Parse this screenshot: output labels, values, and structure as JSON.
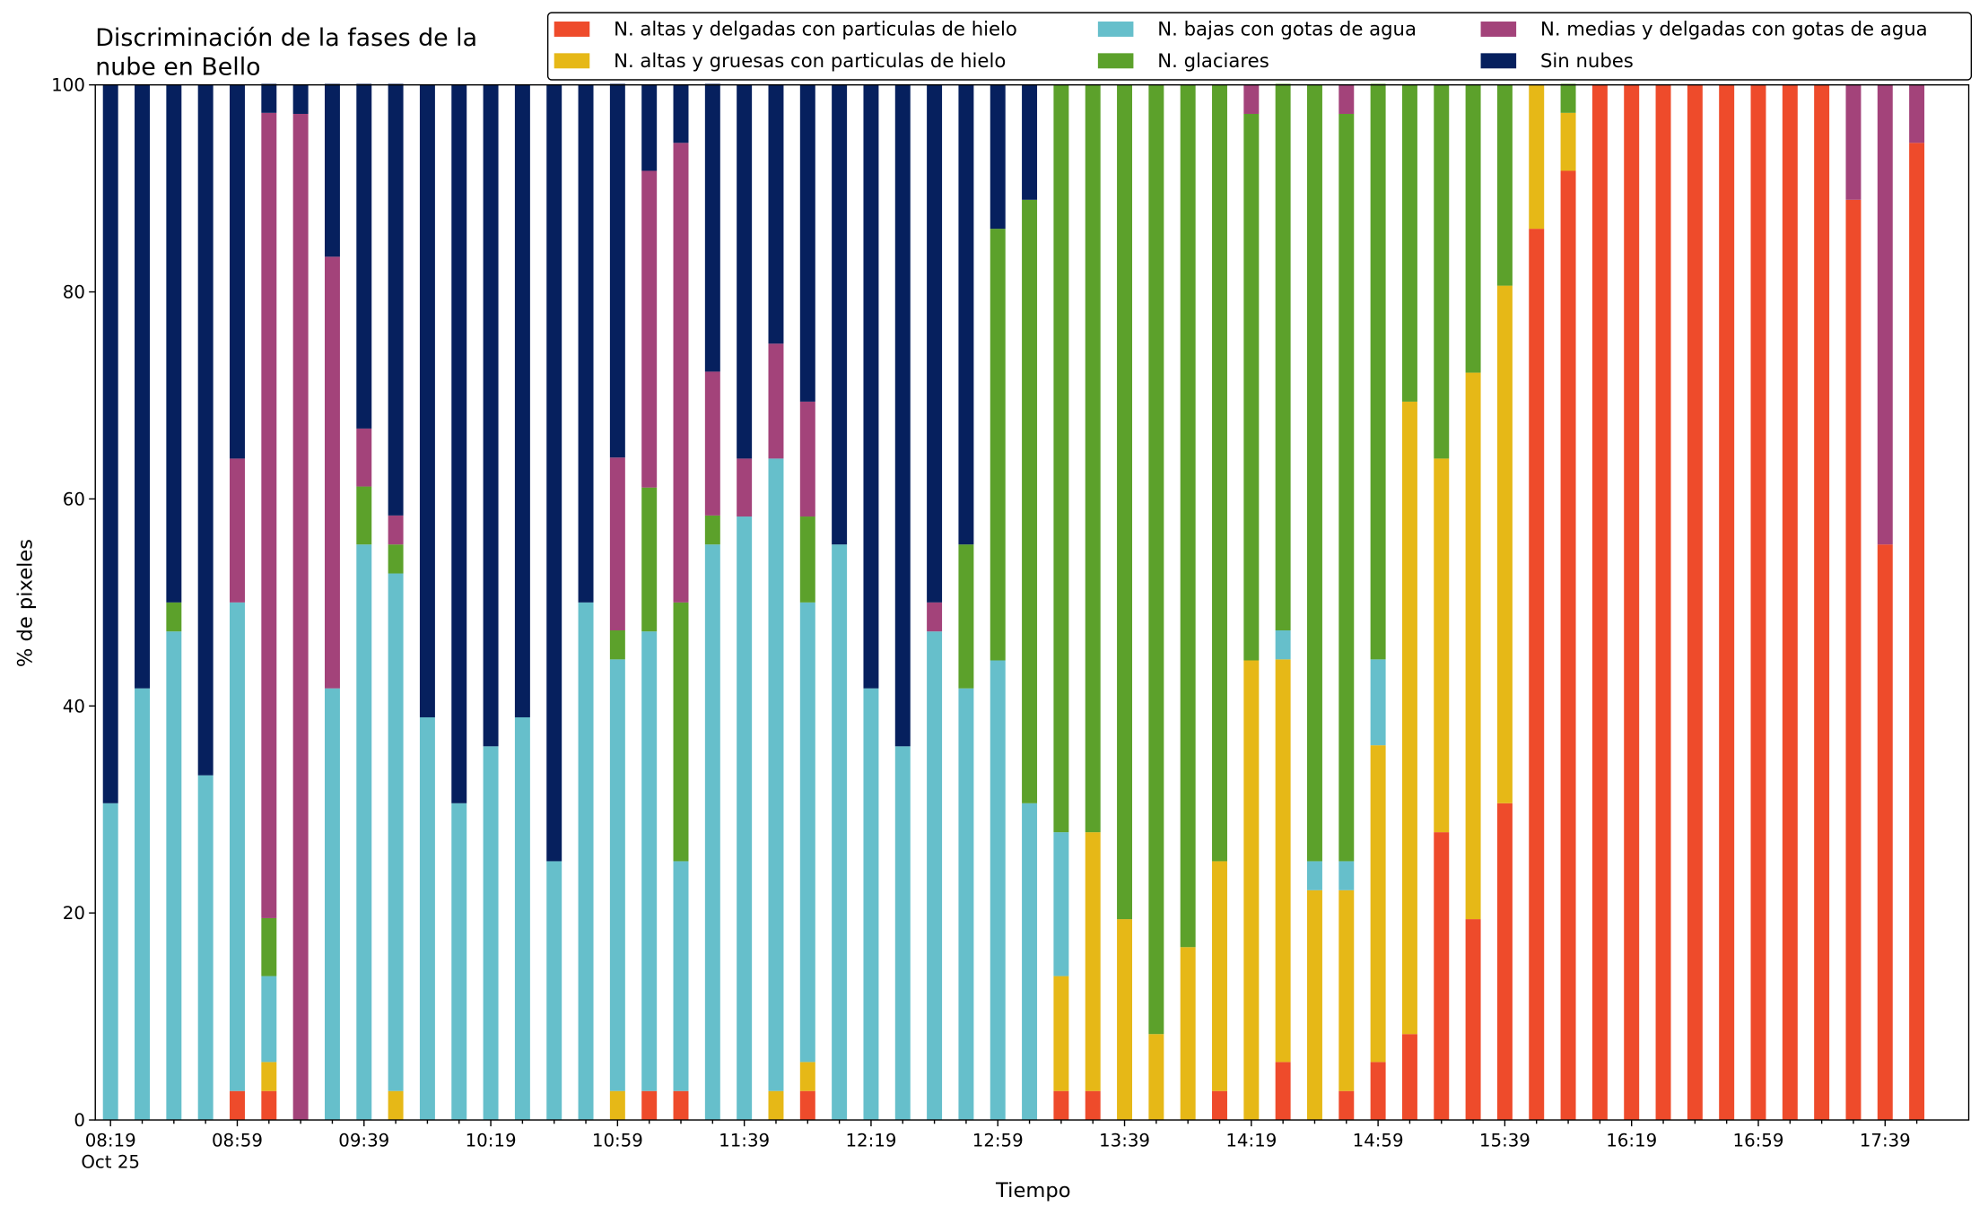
{
  "chart_data": {
    "type": "stacked_bar",
    "title": [
      "Discriminación de la fases de la",
      "nube en Bello"
    ],
    "xlabel": "Tiempo",
    "ylabel": "% de pixeles",
    "x_date_label": "Oct 25",
    "categories": [
      "08:19",
      null,
      null,
      null,
      "08:59",
      null,
      null,
      null,
      "09:39",
      null,
      null,
      null,
      "10:19",
      null,
      null,
      null,
      "10:59",
      null,
      null,
      null,
      "11:39",
      null,
      null,
      null,
      "12:19",
      null,
      null,
      null,
      "12:59",
      null,
      null,
      null,
      "13:39",
      null,
      null,
      null,
      "14:19",
      null,
      null,
      null,
      "14:59",
      null,
      null,
      null,
      "15:39",
      null,
      null,
      null,
      "16:19",
      null,
      null,
      null,
      "16:59",
      null,
      null,
      null,
      "17:39",
      null
    ],
    "ylim": [
      0,
      100
    ],
    "yticks": [
      0,
      20,
      40,
      60,
      80,
      100
    ],
    "series": [
      {
        "name": "N. altas y delgadas con particulas de hielo",
        "color": "#ee4b2b",
        "values": [
          0,
          0,
          0,
          0,
          2.8,
          2.8,
          0,
          0,
          0,
          0,
          0,
          0,
          0,
          0,
          0,
          0,
          0,
          2.8,
          2.8,
          0,
          0,
          0,
          2.8,
          0,
          0,
          0,
          0,
          0,
          0,
          0,
          2.8,
          2.8,
          0,
          0,
          0,
          2.8,
          0,
          5.6,
          0,
          2.8,
          5.6,
          8.3,
          27.8,
          19.4,
          30.6,
          86.1,
          91.7,
          100,
          100,
          100,
          100,
          100,
          100,
          100,
          100,
          88.9,
          55.6,
          94.4
        ]
      },
      {
        "name": "N. altas y gruesas con particulas de hielo",
        "color": "#e6b817",
        "values": [
          0,
          0,
          0,
          0,
          0,
          2.8,
          0,
          0,
          0,
          2.8,
          0,
          0,
          0,
          0,
          0,
          0,
          2.8,
          0,
          0,
          0,
          0,
          2.8,
          2.8,
          0,
          0,
          0,
          0,
          0,
          0,
          0,
          11.1,
          25,
          19.4,
          8.3,
          16.7,
          22.2,
          44.4,
          38.9,
          22.2,
          19.4,
          30.6,
          61.1,
          36.1,
          52.8,
          50,
          13.9,
          5.6,
          0,
          0,
          0,
          0,
          0,
          0,
          0,
          0,
          0,
          0,
          0
        ]
      },
      {
        "name": "N. bajas con gotas de agua",
        "color": "#66bfcb",
        "values": [
          30.6,
          41.7,
          47.2,
          33.3,
          47.2,
          8.3,
          0,
          41.7,
          55.6,
          50,
          38.9,
          30.6,
          36.1,
          38.9,
          25,
          50,
          41.7,
          44.4,
          22.2,
          55.6,
          58.3,
          61.1,
          44.4,
          55.6,
          41.7,
          36.1,
          47.2,
          41.7,
          44.4,
          30.6,
          13.9,
          0,
          0,
          0,
          0,
          0,
          0,
          2.8,
          2.8,
          2.8,
          8.3,
          0,
          0,
          0,
          0,
          0,
          0,
          0,
          0,
          0,
          0,
          0,
          0,
          0,
          0,
          0,
          0,
          0
        ]
      },
      {
        "name": "N. glaciares",
        "color": "#5ca12b",
        "values": [
          0,
          0,
          2.8,
          0,
          0,
          5.6,
          0,
          0,
          5.6,
          2.8,
          0,
          0,
          0,
          0,
          0,
          0,
          2.8,
          13.9,
          25,
          2.8,
          0,
          0,
          8.3,
          0,
          0,
          0,
          0,
          13.9,
          41.7,
          58.3,
          72.2,
          72.2,
          80.6,
          91.7,
          83.3,
          75,
          52.8,
          52.8,
          75,
          72.2,
          55.6,
          30.6,
          36.1,
          27.8,
          19.4,
          0,
          2.8,
          0,
          0,
          0,
          0,
          0,
          0,
          0,
          0,
          0,
          0,
          0
        ]
      },
      {
        "name": "N. medias y delgadas con gotas de agua",
        "color": "#a3437a",
        "values": [
          0,
          0,
          0,
          0,
          13.9,
          77.8,
          97.2,
          41.7,
          5.6,
          2.8,
          0,
          0,
          0,
          0,
          0,
          0,
          16.7,
          30.6,
          44.4,
          13.9,
          5.6,
          11.1,
          11.1,
          0,
          0,
          0,
          2.8,
          0,
          0,
          0,
          0,
          0,
          0,
          0,
          0,
          0,
          2.8,
          0,
          0,
          2.8,
          0,
          0,
          0,
          0,
          0,
          0,
          0,
          0,
          0,
          0,
          0,
          0,
          0,
          0,
          0,
          11.1,
          44.4,
          5.6
        ]
      },
      {
        "name": "Sin nubes",
        "color": "#06205e",
        "values": [
          69.4,
          58.3,
          50,
          66.7,
          36.1,
          2.8,
          2.8,
          16.7,
          33.3,
          41.7,
          61.1,
          69.4,
          63.9,
          61.1,
          75,
          50,
          36.1,
          8.3,
          5.6,
          27.8,
          36.1,
          25,
          30.6,
          44.4,
          58.3,
          63.9,
          50,
          44.4,
          13.9,
          11.1,
          0,
          0,
          0,
          0,
          0,
          0,
          0,
          0,
          0,
          0,
          0,
          0,
          0,
          0,
          0,
          0,
          0,
          0,
          0,
          0,
          0,
          0,
          0,
          0,
          0,
          0,
          0,
          0
        ]
      }
    ]
  }
}
